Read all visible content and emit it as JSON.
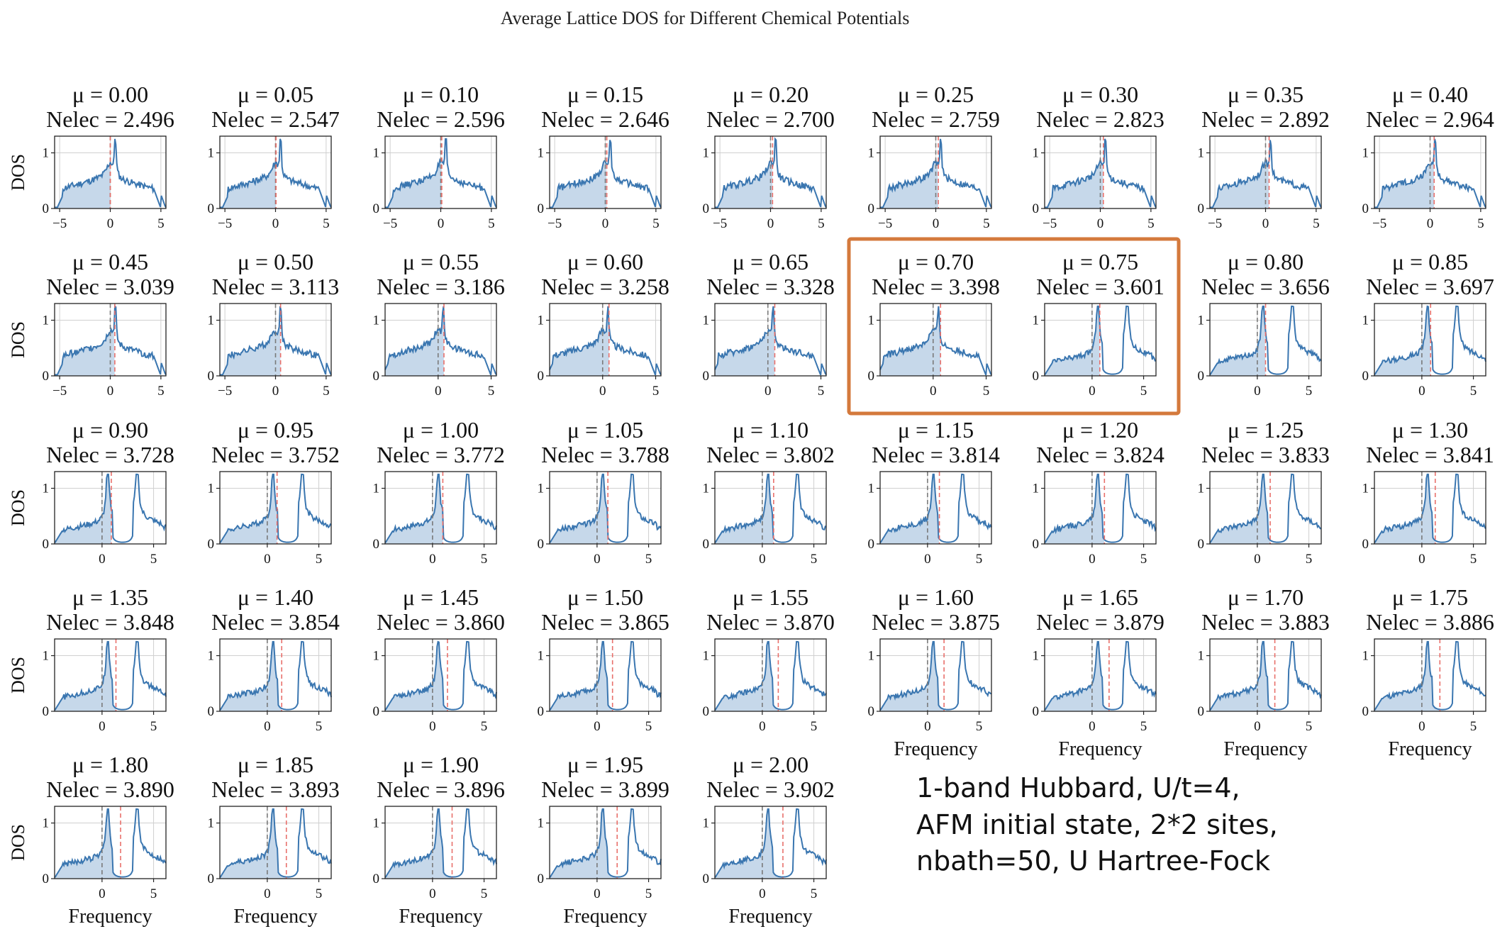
{
  "title": "Average Lattice DOS for Different Chemical Potentials",
  "mu_prefix": "μ = ",
  "nelec_prefix": "Nelec = ",
  "ylabel": "DOS",
  "xlabel": "Frequency",
  "note": [
    "1-band Hubbard, U/t=4,",
    "AFM initial state, 2*2 sites,",
    "nbath=50, U Hartree-Fock"
  ],
  "colors": {
    "line": "#3a76b0",
    "fill": "#c6d8ea",
    "mu_line": "#e8706b",
    "zero_line": "#7a7a7a",
    "highlight": "#d4793c",
    "grid": "#d0d0d0"
  },
  "chart_data": {
    "type": "area",
    "subplot_count": 41,
    "grid": true,
    "ylim": [
      0,
      1.3
    ],
    "yticks": [
      0,
      1
    ],
    "highlighted_panels": [
      "μ = 0.70",
      "μ = 0.75"
    ],
    "panels": [
      {
        "mu": "0.00",
        "nelec": "2.496",
        "xlim": [
          -5.5,
          5.5
        ],
        "xticks": [
          -5,
          0,
          5
        ],
        "regime": "single_peak",
        "mu_value": 0.0
      },
      {
        "mu": "0.05",
        "nelec": "2.547",
        "xlim": [
          -5.5,
          5.5
        ],
        "xticks": [
          -5,
          0,
          5
        ],
        "regime": "single_peak",
        "mu_value": 0.05
      },
      {
        "mu": "0.10",
        "nelec": "2.596",
        "xlim": [
          -5.5,
          5.5
        ],
        "xticks": [
          -5,
          0,
          5
        ],
        "regime": "single_peak",
        "mu_value": 0.1
      },
      {
        "mu": "0.15",
        "nelec": "2.646",
        "xlim": [
          -5.5,
          5.5
        ],
        "xticks": [
          -5,
          0,
          5
        ],
        "regime": "single_peak",
        "mu_value": 0.15
      },
      {
        "mu": "0.20",
        "nelec": "2.700",
        "xlim": [
          -5.5,
          5.5
        ],
        "xticks": [
          -5,
          0,
          5
        ],
        "regime": "single_peak",
        "mu_value": 0.2
      },
      {
        "mu": "0.25",
        "nelec": "2.759",
        "xlim": [
          -5.5,
          5.5
        ],
        "xticks": [
          -5,
          0,
          5
        ],
        "regime": "single_peak",
        "mu_value": 0.25
      },
      {
        "mu": "0.30",
        "nelec": "2.823",
        "xlim": [
          -5.5,
          5.5
        ],
        "xticks": [
          -5,
          0,
          5
        ],
        "regime": "single_peak",
        "mu_value": 0.3
      },
      {
        "mu": "0.35",
        "nelec": "2.892",
        "xlim": [
          -5.5,
          5.5
        ],
        "xticks": [
          -5,
          0,
          5
        ],
        "regime": "single_peak",
        "mu_value": 0.35
      },
      {
        "mu": "0.40",
        "nelec": "2.964",
        "xlim": [
          -5.5,
          5.5
        ],
        "xticks": [
          -5,
          0,
          5
        ],
        "regime": "single_peak",
        "mu_value": 0.4
      },
      {
        "mu": "0.45",
        "nelec": "3.039",
        "xlim": [
          -5.5,
          5.5
        ],
        "xticks": [
          -5,
          0,
          5
        ],
        "regime": "single_peak",
        "mu_value": 0.45
      },
      {
        "mu": "0.50",
        "nelec": "3.113",
        "xlim": [
          -5.5,
          5.5
        ],
        "xticks": [
          -5,
          0,
          5
        ],
        "regime": "single_peak",
        "mu_value": 0.5
      },
      {
        "mu": "0.55",
        "nelec": "3.186",
        "xlim": [
          -5,
          5.5
        ],
        "xticks": [
          0,
          5
        ],
        "regime": "single_peak",
        "mu_value": 0.55
      },
      {
        "mu": "0.60",
        "nelec": "3.258",
        "xlim": [
          -5,
          5.5
        ],
        "xticks": [
          0,
          5
        ],
        "regime": "single_peak",
        "mu_value": 0.6
      },
      {
        "mu": "0.65",
        "nelec": "3.328",
        "xlim": [
          -5,
          5.5
        ],
        "xticks": [
          0,
          5
        ],
        "regime": "single_peak",
        "mu_value": 0.65
      },
      {
        "mu": "0.70",
        "nelec": "3.398",
        "xlim": [
          -5,
          5.5
        ],
        "xticks": [
          0,
          5
        ],
        "regime": "single_peak",
        "mu_value": 0.7
      },
      {
        "mu": "0.75",
        "nelec": "3.601",
        "xlim": [
          -4.6,
          6.2
        ],
        "xticks": [
          0,
          5
        ],
        "regime": "double_peak",
        "mu_value": 0.75
      },
      {
        "mu": "0.80",
        "nelec": "3.656",
        "xlim": [
          -4.6,
          6.2
        ],
        "xticks": [
          0,
          5
        ],
        "regime": "double_peak",
        "mu_value": 0.8
      },
      {
        "mu": "0.85",
        "nelec": "3.697",
        "xlim": [
          -4.6,
          6.2
        ],
        "xticks": [
          0,
          5
        ],
        "regime": "double_peak",
        "mu_value": 0.85
      },
      {
        "mu": "0.90",
        "nelec": "3.728",
        "xlim": [
          -4.6,
          6.2
        ],
        "xticks": [
          0,
          5
        ],
        "regime": "double_peak",
        "mu_value": 0.9
      },
      {
        "mu": "0.95",
        "nelec": "3.752",
        "xlim": [
          -4.6,
          6.2
        ],
        "xticks": [
          0,
          5
        ],
        "regime": "double_peak",
        "mu_value": 0.95
      },
      {
        "mu": "1.00",
        "nelec": "3.772",
        "xlim": [
          -4.6,
          6.2
        ],
        "xticks": [
          0,
          5
        ],
        "regime": "double_peak",
        "mu_value": 1.0
      },
      {
        "mu": "1.05",
        "nelec": "3.788",
        "xlim": [
          -4.6,
          6.2
        ],
        "xticks": [
          0,
          5
        ],
        "regime": "double_peak",
        "mu_value": 1.05
      },
      {
        "mu": "1.10",
        "nelec": "3.802",
        "xlim": [
          -4.6,
          6.2
        ],
        "xticks": [
          0,
          5
        ],
        "regime": "double_peak",
        "mu_value": 1.1
      },
      {
        "mu": "1.15",
        "nelec": "3.814",
        "xlim": [
          -4.6,
          6.2
        ],
        "xticks": [
          0,
          5
        ],
        "regime": "double_peak",
        "mu_value": 1.15
      },
      {
        "mu": "1.20",
        "nelec": "3.824",
        "xlim": [
          -4.6,
          6.2
        ],
        "xticks": [
          0,
          5
        ],
        "regime": "double_peak",
        "mu_value": 1.2
      },
      {
        "mu": "1.25",
        "nelec": "3.833",
        "xlim": [
          -4.6,
          6.2
        ],
        "xticks": [
          0,
          5
        ],
        "regime": "double_peak",
        "mu_value": 1.25
      },
      {
        "mu": "1.30",
        "nelec": "3.841",
        "xlim": [
          -4.6,
          6.2
        ],
        "xticks": [
          0,
          5
        ],
        "regime": "double_peak",
        "mu_value": 1.3
      },
      {
        "mu": "1.35",
        "nelec": "3.848",
        "xlim": [
          -4.6,
          6.2
        ],
        "xticks": [
          0,
          5
        ],
        "regime": "double_peak",
        "mu_value": 1.35
      },
      {
        "mu": "1.40",
        "nelec": "3.854",
        "xlim": [
          -4.6,
          6.2
        ],
        "xticks": [
          0,
          5
        ],
        "regime": "double_peak",
        "mu_value": 1.4
      },
      {
        "mu": "1.45",
        "nelec": "3.860",
        "xlim": [
          -4.6,
          6.2
        ],
        "xticks": [
          0,
          5
        ],
        "regime": "double_peak",
        "mu_value": 1.45
      },
      {
        "mu": "1.50",
        "nelec": "3.865",
        "xlim": [
          -4.6,
          6.2
        ],
        "xticks": [
          0,
          5
        ],
        "regime": "double_peak",
        "mu_value": 1.5
      },
      {
        "mu": "1.55",
        "nelec": "3.870",
        "xlim": [
          -4.6,
          6.2
        ],
        "xticks": [
          0,
          5
        ],
        "regime": "double_peak",
        "mu_value": 1.55
      },
      {
        "mu": "1.60",
        "nelec": "3.875",
        "xlim": [
          -4.6,
          6.2
        ],
        "xticks": [
          0,
          5
        ],
        "regime": "double_peak",
        "mu_value": 1.6
      },
      {
        "mu": "1.65",
        "nelec": "3.879",
        "xlim": [
          -4.6,
          6.2
        ],
        "xticks": [
          0,
          5
        ],
        "regime": "double_peak",
        "mu_value": 1.65
      },
      {
        "mu": "1.70",
        "nelec": "3.883",
        "xlim": [
          -4.6,
          6.2
        ],
        "xticks": [
          0,
          5
        ],
        "regime": "double_peak",
        "mu_value": 1.7
      },
      {
        "mu": "1.75",
        "nelec": "3.886",
        "xlim": [
          -4.6,
          6.2
        ],
        "xticks": [
          0,
          5
        ],
        "regime": "double_peak",
        "mu_value": 1.75
      },
      {
        "mu": "1.80",
        "nelec": "3.890",
        "xlim": [
          -4.6,
          6.2
        ],
        "xticks": [
          0,
          5
        ],
        "regime": "double_peak",
        "mu_value": 1.8
      },
      {
        "mu": "1.85",
        "nelec": "3.893",
        "xlim": [
          -4.6,
          6.2
        ],
        "xticks": [
          0,
          5
        ],
        "regime": "double_peak",
        "mu_value": 1.85
      },
      {
        "mu": "1.90",
        "nelec": "3.896",
        "xlim": [
          -4.6,
          6.2
        ],
        "xticks": [
          0,
          5
        ],
        "regime": "double_peak",
        "mu_value": 1.9
      },
      {
        "mu": "1.95",
        "nelec": "3.899",
        "xlim": [
          -4.6,
          6.2
        ],
        "xticks": [
          0,
          5
        ],
        "regime": "double_peak",
        "mu_value": 1.95
      },
      {
        "mu": "2.00",
        "nelec": "3.902",
        "xlim": [
          -4.6,
          6.2
        ],
        "xticks": [
          0,
          5
        ],
        "regime": "double_peak",
        "mu_value": 2.0
      }
    ]
  }
}
